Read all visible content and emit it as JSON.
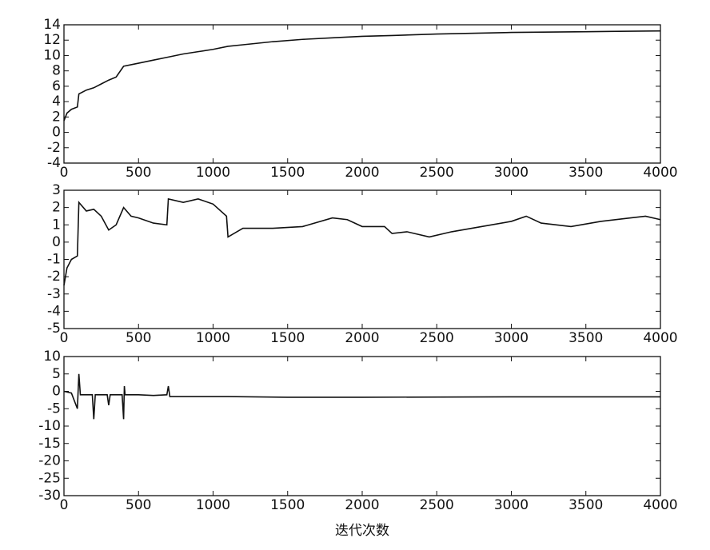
{
  "chart_data": [
    {
      "type": "line",
      "x": [
        0,
        20,
        50,
        90,
        100,
        150,
        200,
        250,
        300,
        350,
        400,
        500,
        600,
        700,
        800,
        900,
        1000,
        1100,
        1200,
        1400,
        1600,
        1800,
        2000,
        2200,
        2500,
        3000,
        3500,
        4000
      ],
      "series": [
        {
          "color": "#111111",
          "values": [
            1.5,
            2.5,
            3,
            3.3,
            5,
            5.5,
            5.8,
            6.3,
            6.8,
            7.2,
            8.6,
            9,
            9.4,
            9.8,
            10.2,
            10.5,
            10.8,
            11.2,
            11.4,
            11.8,
            12.1,
            12.3,
            12.5,
            12.6,
            12.8,
            13,
            13.1,
            13.2
          ]
        }
      ],
      "xlim": [
        0,
        4000
      ],
      "ylim": [
        -4,
        14
      ],
      "xticks": [
        0,
        500,
        1000,
        1500,
        2000,
        2500,
        3000,
        3500,
        4000
      ],
      "yticks": [
        -4,
        -2,
        0,
        2,
        4,
        6,
        8,
        10,
        12,
        14
      ]
    },
    {
      "type": "line",
      "x": [
        0,
        20,
        50,
        90,
        100,
        150,
        200,
        250,
        300,
        350,
        400,
        450,
        500,
        600,
        690,
        700,
        800,
        900,
        1000,
        1090,
        1100,
        1200,
        1400,
        1600,
        1800,
        1900,
        2000,
        2150,
        2200,
        2300,
        2450,
        2600,
        2800,
        3000,
        3100,
        3200,
        3400,
        3600,
        3800,
        3900,
        4000
      ],
      "series": [
        {
          "color": "#111111",
          "values": [
            -2.5,
            -1.5,
            -1,
            -0.8,
            2.3,
            1.8,
            1.9,
            1.5,
            0.7,
            1,
            2,
            1.5,
            1.4,
            1.1,
            1,
            2.5,
            2.3,
            2.5,
            2.2,
            1.5,
            0.3,
            0.8,
            0.8,
            0.9,
            1.4,
            1.3,
            0.9,
            0.9,
            0.5,
            0.6,
            0.3,
            0.6,
            0.9,
            1.2,
            1.5,
            1.1,
            0.9,
            1.2,
            1.4,
            1.5,
            1.3
          ]
        }
      ],
      "xlim": [
        0,
        4000
      ],
      "ylim": [
        -5,
        3
      ],
      "xticks": [
        0,
        500,
        1000,
        1500,
        2000,
        2500,
        3000,
        3500,
        4000
      ],
      "yticks": [
        -5,
        -4,
        -3,
        -2,
        -1,
        0,
        1,
        2,
        3
      ]
    },
    {
      "type": "line",
      "x": [
        0,
        50,
        90,
        100,
        110,
        190,
        200,
        210,
        290,
        300,
        310,
        390,
        400,
        405,
        410,
        500,
        600,
        690,
        700,
        710,
        800,
        1000,
        1100,
        1500,
        2000,
        3000,
        4000
      ],
      "series": [
        {
          "color": "#111111",
          "values": [
            0,
            -0.5,
            -5,
            5,
            -1,
            -1,
            -8,
            -1,
            -1,
            -4,
            -1,
            -1,
            -8,
            1.5,
            -1,
            -1,
            -1.2,
            -1,
            1.5,
            -1.5,
            -1.5,
            -1.5,
            -1.5,
            -1.7,
            -1.7,
            -1.6,
            -1.6
          ]
        }
      ],
      "xlim": [
        0,
        4000
      ],
      "ylim": [
        -30,
        10
      ],
      "xticks": [
        0,
        500,
        1000,
        1500,
        2000,
        2500,
        3000,
        3500,
        4000
      ],
      "yticks": [
        -30,
        -25,
        -20,
        -15,
        -10,
        -5,
        0,
        5,
        10
      ],
      "x_label": "迭代次数"
    }
  ]
}
